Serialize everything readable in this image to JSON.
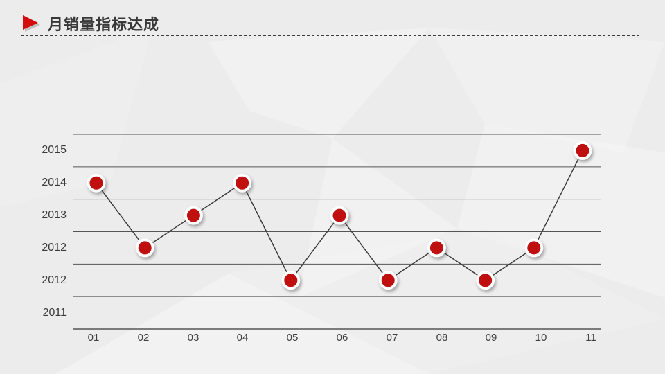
{
  "slide": {
    "title": "月销量指标达成"
  },
  "colors": {
    "background": "#ececec",
    "accent_red": "#c00f0f",
    "icon_red": "#d40b0b",
    "icon_shadow": "#9b9b9b",
    "series_line": "#3a3a3a",
    "grid_line": "#555555",
    "marker_ring": "#ffffff",
    "text": "#3a3a3a"
  },
  "chart_data": {
    "type": "line",
    "title": "月销量指标达成",
    "categories": [
      "01",
      "02",
      "03",
      "04",
      "05",
      "06",
      "07",
      "08",
      "09",
      "10",
      "11"
    ],
    "y_axis_labels_top_to_bottom": [
      "2015",
      "2014",
      "2013",
      "2012",
      "2012",
      "2011"
    ],
    "values_by_label": [
      "2014",
      "2012",
      "2013",
      "2014",
      "2012",
      "2013",
      "2012",
      "2012",
      "2012",
      "2012",
      "2015"
    ],
    "row_indices_from_top": [
      1,
      3,
      2,
      1,
      4,
      2,
      4,
      3,
      4,
      3,
      0
    ],
    "grid": true,
    "legend": false,
    "marker": "filled-circle-with-white-ring",
    "x_axis_position": "bottom",
    "y_axis_line": false
  }
}
